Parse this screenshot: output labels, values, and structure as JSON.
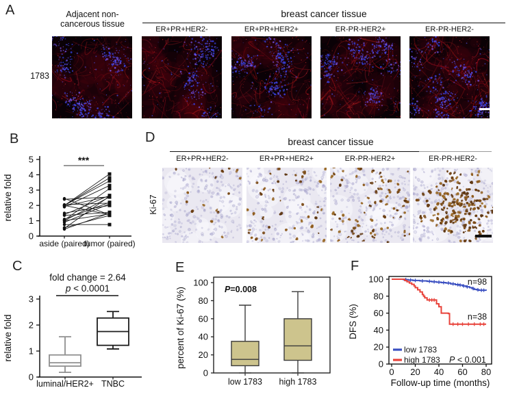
{
  "colors": {
    "km_blue": "#3a4fc1",
    "km_red": "#e8423a",
    "box_khaki": "#cdc48d"
  },
  "panel_a": {
    "letter": "A",
    "row_label": "1783",
    "adjacent_header_line1": "Adjacent non-",
    "adjacent_header_line2": "cancerous tissue",
    "group_header": "breast cancer tissue",
    "subtypes": [
      "ER+PR+HER2-",
      "ER+PR+HER2+",
      "ER-PR-HER2+",
      "ER-PR-HER2-"
    ],
    "images": [
      {
        "name": "adjacent non-cancerous tissue",
        "red": 0.35,
        "blue": 1.0,
        "seed": 3
      },
      {
        "name": "ER+PR+HER2-",
        "red": 0.42,
        "blue": 0.5,
        "seed": 7
      },
      {
        "name": "ER+PR+HER2+",
        "red": 0.5,
        "blue": 0.75,
        "seed": 13
      },
      {
        "name": "ER-PR-HER2+",
        "red": 0.62,
        "blue": 0.7,
        "seed": 21
      },
      {
        "name": "ER-PR-HER2-",
        "red": 0.85,
        "blue": 0.95,
        "seed": 29
      }
    ]
  },
  "panel_d": {
    "letter": "D",
    "row_label": "Ki-67",
    "group_header": "breast cancer tissue",
    "subtypes": [
      "ER+PR+HER2-",
      "ER+PR+HER2+",
      "ER-PR-HER2+",
      "ER-PR-HER2-"
    ],
    "images": [
      {
        "name": "ER+PR+HER2-",
        "brown": 16,
        "clustered": false,
        "seed": 41
      },
      {
        "name": "ER+PR+HER2+",
        "brown": 42,
        "clustered": false,
        "seed": 43
      },
      {
        "name": "ER-PR-HER2+",
        "brown": 80,
        "clustered": false,
        "seed": 47
      },
      {
        "name": "ER-PR-HER2-",
        "brown": 185,
        "clustered": true,
        "seed": 53
      }
    ]
  },
  "chart_data": [
    {
      "panel": "B",
      "letter": "B",
      "type": "paired-line",
      "ylabel": "relative fold",
      "ylim": [
        0,
        5
      ],
      "yticks": [
        0,
        1,
        2,
        3,
        4,
        5
      ],
      "categories": [
        "aside (paired)",
        "tumor (paired)"
      ],
      "sig_label": "***",
      "pairs": [
        [
          0.45,
          1.5
        ],
        [
          0.5,
          2.6
        ],
        [
          0.55,
          1.35
        ],
        [
          0.75,
          0.75
        ],
        [
          0.9,
          2.1
        ],
        [
          1.0,
          1.45
        ],
        [
          1.0,
          2.55
        ],
        [
          1.05,
          3.1
        ],
        [
          1.1,
          2.2
        ],
        [
          1.35,
          1.55
        ],
        [
          1.4,
          2.65
        ],
        [
          1.5,
          2.0
        ],
        [
          1.9,
          3.3
        ],
        [
          1.95,
          2.6
        ],
        [
          2.0,
          4.05
        ],
        [
          2.0,
          3.6
        ],
        [
          2.0,
          3.8
        ],
        [
          2.0,
          1.4
        ],
        [
          2.05,
          2.15
        ],
        [
          2.4,
          2.55
        ],
        [
          2.45,
          1.4
        ]
      ]
    },
    {
      "panel": "C",
      "letter": "C",
      "type": "box",
      "title": "fold change = 2.64",
      "subtitle": "p < 0.0001",
      "ylabel": "relative fold",
      "ylim": [
        0,
        3
      ],
      "yticks": [
        0,
        1,
        2,
        3
      ],
      "categories": [
        "luminal/HER2+",
        "TNBC"
      ],
      "fill": "#ffffff",
      "boxes": [
        {
          "label": "luminal/HER2+",
          "whisker_low": 0.18,
          "q1": 0.42,
          "median": 0.55,
          "q3": 0.85,
          "whisker_high": 1.55,
          "stroke": "#8f8f8f"
        },
        {
          "label": "TNBC",
          "whisker_low": 1.08,
          "q1": 1.22,
          "median": 1.75,
          "q3": 2.27,
          "whisker_high": 2.52,
          "stroke": "#1c1c1c"
        }
      ]
    },
    {
      "panel": "E",
      "letter": "E",
      "type": "box",
      "frame": true,
      "p_label": "P=0.008",
      "ylabel": "percent of Ki-67 (%)",
      "ylim": [
        0,
        100
      ],
      "yticks": [
        0,
        20,
        40,
        60,
        80,
        100
      ],
      "categories": [
        "low 1783",
        "high 1783"
      ],
      "fill": "#cdc48d",
      "boxes": [
        {
          "label": "low 1783",
          "whisker_low": 0,
          "q1": 8,
          "median": 15,
          "q3": 35,
          "whisker_high": 75,
          "stroke": "#3a3a3a"
        },
        {
          "label": "high 1783",
          "whisker_low": 0,
          "q1": 14,
          "median": 30,
          "q3": 60,
          "whisker_high": 90,
          "stroke": "#3a3a3a"
        }
      ]
    },
    {
      "panel": "F",
      "letter": "F",
      "type": "km",
      "xlabel": "Follow-up time (months)",
      "ylabel": "DFS (%)",
      "xlim": [
        0,
        80
      ],
      "ylim": [
        0,
        100
      ],
      "xticks": [
        0,
        20,
        40,
        60,
        80
      ],
      "yticks": [
        0,
        20,
        40,
        60,
        80,
        100
      ],
      "p_label": "P < 0.001",
      "series": [
        {
          "name": "low 1783",
          "n_label": "n=98",
          "color": "#3a4fc1",
          "steps": [
            [
              0,
              100
            ],
            [
              8,
              100
            ],
            [
              10,
              99.5
            ],
            [
              14,
              99
            ],
            [
              18,
              98.5
            ],
            [
              24,
              98
            ],
            [
              30,
              97.5
            ],
            [
              34,
              97
            ],
            [
              38,
              96.5
            ],
            [
              42,
              96
            ],
            [
              46,
              95.5
            ],
            [
              50,
              94.5
            ],
            [
              54,
              93.5
            ],
            [
              57,
              93
            ],
            [
              60,
              92
            ],
            [
              63,
              91
            ],
            [
              66,
              90
            ],
            [
              68,
              89
            ],
            [
              70,
              88
            ],
            [
              72,
              87.5
            ],
            [
              74,
              87
            ],
            [
              80,
              86.5
            ]
          ],
          "censors": [
            12,
            16,
            20,
            26,
            32,
            36,
            40,
            44,
            48,
            52,
            56,
            58,
            61,
            64,
            69,
            73,
            76,
            78
          ]
        },
        {
          "name": "high 1783",
          "n_label": "n=38",
          "color": "#e8423a",
          "steps": [
            [
              0,
              100
            ],
            [
              9,
              100
            ],
            [
              11,
              98.5
            ],
            [
              13,
              97
            ],
            [
              15,
              95.5
            ],
            [
              17,
              94
            ],
            [
              19,
              92
            ],
            [
              20,
              90
            ],
            [
              22,
              87.5
            ],
            [
              24,
              85
            ],
            [
              26,
              82
            ],
            [
              27,
              80
            ],
            [
              28,
              78
            ],
            [
              30,
              75.5
            ],
            [
              37,
              75.5
            ],
            [
              38,
              71
            ],
            [
              40,
              67.5
            ],
            [
              42,
              60
            ],
            [
              48,
              59.5
            ],
            [
              49,
              47
            ],
            [
              80,
              47
            ]
          ],
          "censors": [
            32,
            34,
            36,
            52,
            56,
            60,
            65,
            70,
            75,
            78
          ]
        }
      ],
      "legend": [
        {
          "label": "low 1783",
          "color": "#3a4fc1"
        },
        {
          "label": "high 1783",
          "color": "#e8423a"
        }
      ]
    }
  ]
}
